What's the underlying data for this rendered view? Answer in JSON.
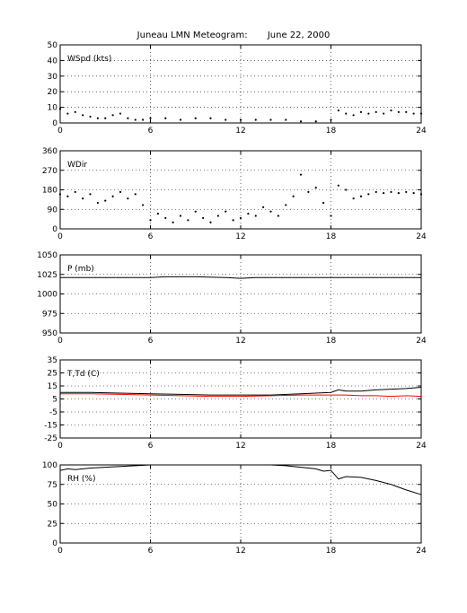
{
  "title": "Juneau LMN Meteogram:       June 22, 2000",
  "chart_data": [
    {
      "type": "scatter",
      "panel_label": "WSpd (kts)",
      "xlim": [
        0,
        24
      ],
      "xticks": [
        0,
        6,
        12,
        18,
        24
      ],
      "ylim": [
        0,
        50
      ],
      "yticks": [
        0,
        10,
        20,
        30,
        40,
        50
      ],
      "grid": true,
      "series": [
        {
          "color": "#000000",
          "style": "dots",
          "x": [
            0,
            0.5,
            1,
            1.5,
            2,
            2.5,
            3,
            3.5,
            4,
            4.5,
            5,
            5.5,
            6,
            7,
            8,
            9,
            10,
            11,
            12,
            13,
            14,
            15,
            16,
            17,
            18,
            18.5,
            19,
            19.5,
            20,
            20.5,
            21,
            21.5,
            22,
            22.5,
            23,
            23.5,
            24
          ],
          "values": [
            9,
            6,
            7,
            5,
            4,
            3,
            3,
            5,
            6,
            3,
            2,
            2,
            3,
            3,
            2,
            3,
            3,
            2,
            2,
            2,
            2,
            2,
            1,
            1,
            2,
            8,
            6,
            5,
            7,
            6,
            7,
            6,
            8,
            7,
            7,
            6,
            6
          ]
        }
      ]
    },
    {
      "type": "scatter",
      "panel_label": "WDir",
      "xlim": [
        0,
        24
      ],
      "xticks": [
        0,
        6,
        12,
        18,
        24
      ],
      "ylim": [
        0,
        360
      ],
      "yticks": [
        0,
        90,
        180,
        270,
        360
      ],
      "grid": true,
      "series": [
        {
          "color": "#000000",
          "style": "dots",
          "x": [
            0,
            0.5,
            1,
            1.5,
            2,
            2.5,
            3,
            3.5,
            4,
            4.5,
            5,
            5.5,
            6,
            6.5,
            7,
            7.5,
            8,
            8.5,
            9,
            9.5,
            10,
            10.5,
            11,
            11.5,
            12,
            12.5,
            13,
            13.5,
            14,
            14.5,
            15,
            15.5,
            16,
            16.5,
            17,
            17.5,
            18,
            18.5,
            19,
            19.5,
            20,
            20.5,
            21,
            21.5,
            22,
            22.5,
            23,
            23.5,
            24
          ],
          "values": [
            160,
            150,
            170,
            140,
            160,
            120,
            130,
            150,
            170,
            140,
            160,
            110,
            40,
            70,
            50,
            30,
            60,
            40,
            80,
            50,
            30,
            60,
            80,
            40,
            50,
            70,
            60,
            100,
            80,
            60,
            110,
            150,
            250,
            170,
            190,
            120,
            60,
            200,
            180,
            140,
            150,
            160,
            170,
            165,
            170,
            165,
            170,
            165,
            160
          ]
        }
      ]
    },
    {
      "type": "line",
      "panel_label": "P (mb)",
      "xlim": [
        0,
        24
      ],
      "xticks": [
        0,
        6,
        12,
        18,
        24
      ],
      "ylim": [
        950,
        1050
      ],
      "yticks": [
        950,
        975,
        1000,
        1025,
        1050
      ],
      "grid": true,
      "series": [
        {
          "color": "#000000",
          "style": "line",
          "x": [
            0,
            3,
            6,
            7,
            9,
            11,
            12,
            13,
            15,
            18,
            21,
            24
          ],
          "values": [
            1021,
            1021,
            1021,
            1022,
            1022,
            1021,
            1020,
            1021,
            1021,
            1021,
            1021,
            1021
          ]
        }
      ]
    },
    {
      "type": "line",
      "panel_label": "T,Td (C)",
      "xlim": [
        0,
        24
      ],
      "xticks": [
        0,
        6,
        12,
        18,
        24
      ],
      "ylim": [
        -25,
        35
      ],
      "yticks": [
        -25,
        -15,
        -5,
        5,
        15,
        25,
        35
      ],
      "grid": true,
      "series": [
        {
          "color": "#000000",
          "style": "line",
          "x": [
            0,
            2,
            4,
            6,
            8,
            10,
            12,
            14,
            16,
            17,
            18,
            18.5,
            19,
            20,
            21,
            22,
            23,
            24
          ],
          "values": [
            10,
            10,
            9.5,
            9,
            8.5,
            8,
            8,
            8,
            9,
            9.5,
            10,
            12,
            11,
            11,
            12,
            12.5,
            13,
            14
          ]
        },
        {
          "color": "#ff0000",
          "style": "line",
          "x": [
            0,
            2,
            4,
            6,
            8,
            10,
            12,
            14,
            16,
            17,
            18,
            19,
            20,
            21,
            22,
            23,
            24
          ],
          "values": [
            9,
            9,
            8.5,
            8,
            7.5,
            7,
            7,
            7.5,
            8,
            8,
            8,
            8,
            7.5,
            7.5,
            7,
            7.5,
            7
          ]
        }
      ]
    },
    {
      "type": "line",
      "panel_label": "RH (%)",
      "xlim": [
        0,
        24
      ],
      "xticks": [
        0,
        6,
        12,
        18,
        24
      ],
      "ylim": [
        0,
        100
      ],
      "yticks": [
        0,
        25,
        50,
        75,
        100
      ],
      "grid": true,
      "series": [
        {
          "color": "#000000",
          "style": "line",
          "x": [
            0,
            0.5,
            1,
            2,
            3,
            4,
            5,
            6,
            6.5
          ],
          "values": [
            93,
            95,
            94,
            96,
            97,
            98,
            99,
            100,
            100
          ]
        },
        {
          "color": "#000000",
          "style": "line",
          "x": [
            14,
            15,
            16,
            17,
            17.5,
            18,
            18.5,
            19,
            20,
            21,
            22,
            23,
            24
          ],
          "values": [
            100,
            99,
            97,
            95,
            92,
            93,
            82,
            85,
            84,
            80,
            75,
            68,
            62
          ]
        }
      ]
    }
  ]
}
